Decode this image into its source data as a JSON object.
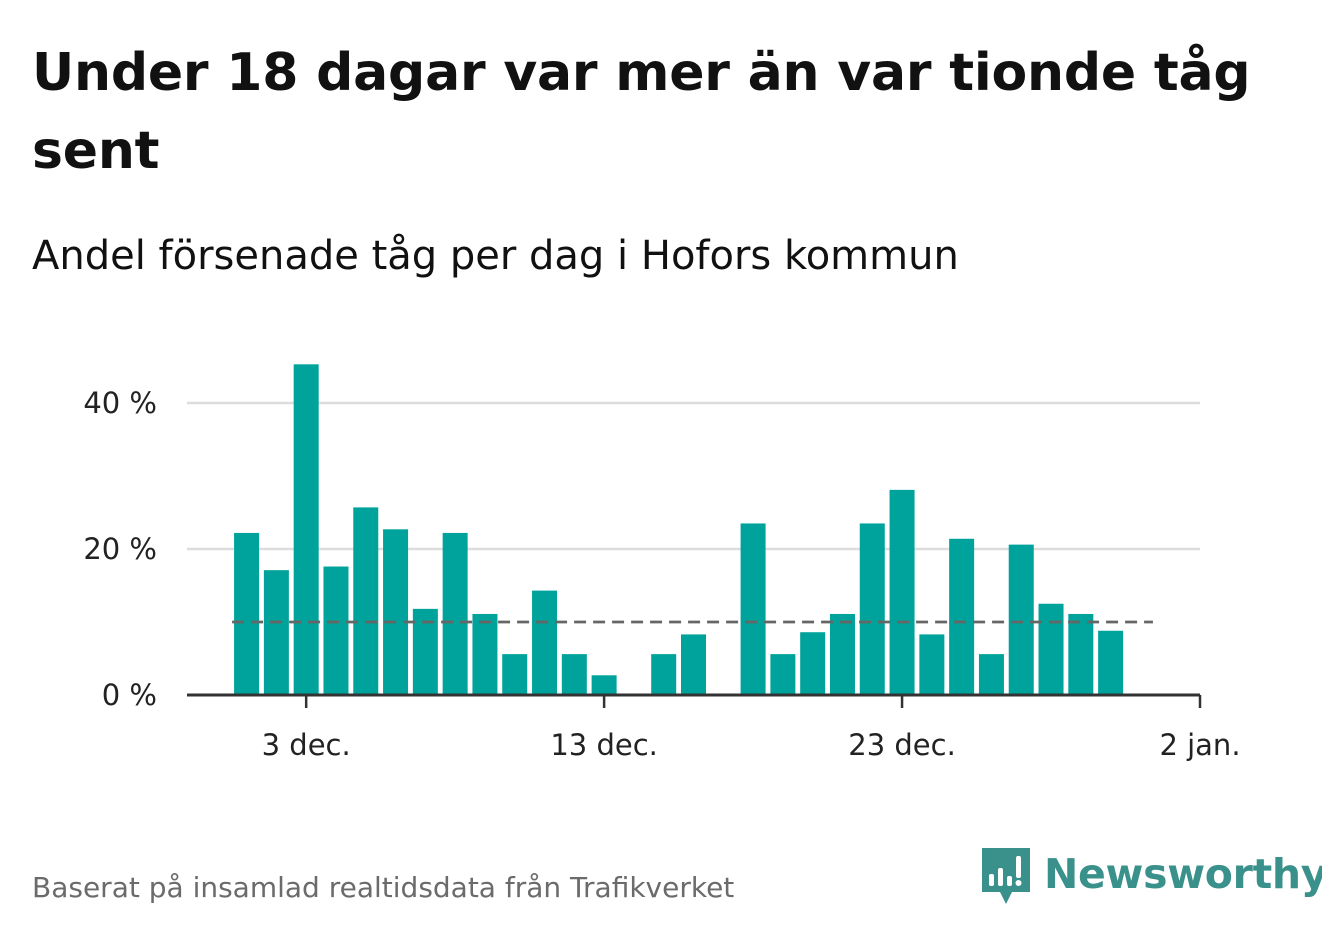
{
  "header": {
    "title": "Under 18 dagar var mer än var tionde tåg sent",
    "subtitle": "Andel försenade tåg per dag i Hofors kommun"
  },
  "footer": {
    "source": "Baserat på insamlad realtidsdata från Trafikverket",
    "brand": "Newsworthy"
  },
  "colors": {
    "bar": "#00a39b",
    "reference_line": "#666666",
    "grid": "#dddddd",
    "axis": "#333333",
    "brand": "#3a918b"
  },
  "icons": {
    "brand_logo": "bar-chart-speech-bubble-icon"
  },
  "chart_data": {
    "type": "bar",
    "title": "Under 18 dagar var mer än var tionde tåg sent",
    "subtitle": "Andel försenade tåg per dag i Hofors kommun",
    "xlabel": "",
    "ylabel": "",
    "x": [
      "2018-12-01",
      "2018-12-02",
      "2018-12-03",
      "2018-12-04",
      "2018-12-05",
      "2018-12-06",
      "2018-12-07",
      "2018-12-08",
      "2018-12-09",
      "2018-12-10",
      "2018-12-11",
      "2018-12-12",
      "2018-12-13",
      "2018-12-14",
      "2018-12-15",
      "2018-12-16",
      "2018-12-17",
      "2018-12-18",
      "2018-12-19",
      "2018-12-20",
      "2018-12-21",
      "2018-12-22",
      "2018-12-23",
      "2018-12-24",
      "2018-12-25",
      "2018-12-26",
      "2018-12-27",
      "2018-12-28",
      "2018-12-29",
      "2018-12-30",
      "2018-12-31"
    ],
    "values": [
      22.2,
      17.1,
      45.3,
      17.6,
      25.7,
      22.7,
      11.8,
      22.2,
      11.1,
      5.6,
      14.3,
      5.6,
      2.7,
      0,
      5.6,
      8.3,
      0,
      23.5,
      5.6,
      8.6,
      11.1,
      23.5,
      28.1,
      8.3,
      21.4,
      5.6,
      20.6,
      12.5,
      11.1,
      8.8,
      0
    ],
    "reference_line": {
      "value": 10,
      "style": "dashed"
    },
    "ylim": [
      0,
      50
    ],
    "y_ticks": [
      {
        "value": 0,
        "label": "0 %"
      },
      {
        "value": 20,
        "label": "20 %"
      },
      {
        "value": 40,
        "label": "40 %"
      }
    ],
    "x_ticks": [
      {
        "date": "2018-12-03",
        "label": "3 dec."
      },
      {
        "date": "2018-12-13",
        "label": "13 dec."
      },
      {
        "date": "2018-12-23",
        "label": "23 dec."
      },
      {
        "date": "2019-01-02",
        "label": "2 jan."
      }
    ],
    "x_axis_start": "2018-11-29",
    "x_axis_end": "2019-01-02",
    "grid": true,
    "legend": "none"
  }
}
